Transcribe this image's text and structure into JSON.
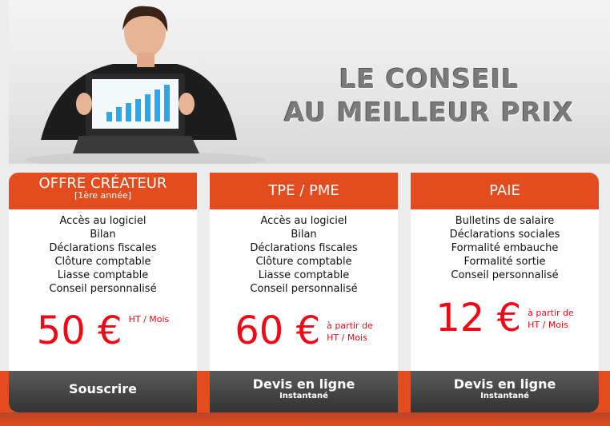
{
  "banner": {
    "slogan_line1": "LE CONSEIL",
    "slogan_line2": "AU MEILLEUR PRIX"
  },
  "colors": {
    "accent": "#e34c1e",
    "price": "#f00815",
    "footer": "#444444"
  },
  "plans": [
    {
      "title": "OFFRE CRÉATEUR",
      "subtitle": "[1ère année]",
      "features": [
        "Accès au logiciel",
        "Bilan",
        "Déclarations fiscales",
        "Clôture comptable",
        "Liasse comptable",
        "Conseil personnalisé"
      ],
      "price": "50 €",
      "unit_line1": "HT / Mois",
      "unit_line2": "",
      "cta": "Souscrire",
      "cta_sub": ""
    },
    {
      "title": "TPE / PME",
      "subtitle": "",
      "features": [
        "Accès au logiciel",
        "Bilan",
        "Déclarations fiscales",
        "Clôture comptable",
        "Liasse comptable",
        "Conseil personnalisé"
      ],
      "price": "60 €",
      "unit_line1": "à partir de",
      "unit_line2": "HT / Mois",
      "cta": "Devis en ligne",
      "cta_sub": "Instantané"
    },
    {
      "title": "PAIE",
      "subtitle": "",
      "features": [
        "Bulletins de salaire",
        "Déclarations sociales",
        "Formalité embauche",
        "Formalité sortie",
        "Conseil personnalisé"
      ],
      "price": "12 €",
      "unit_line1": "à partir de",
      "unit_line2": "HT / Mois",
      "cta": "Devis en ligne",
      "cta_sub": "Instantané"
    }
  ]
}
